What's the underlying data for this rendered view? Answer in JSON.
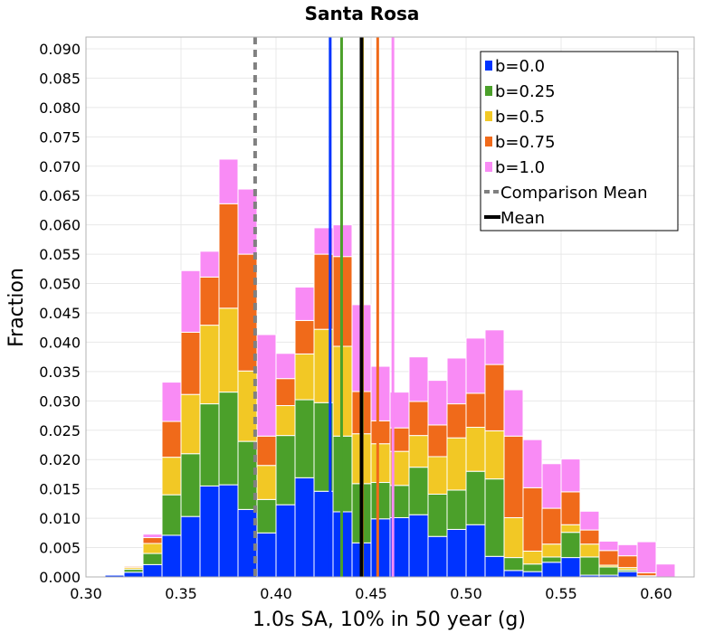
{
  "chart_data": {
    "type": "bar",
    "stacked": true,
    "title": "Santa Rosa",
    "xlabel": "1.0s SA, 10% in 50 year (g)",
    "ylabel": "Fraction",
    "xlim": [
      0.3,
      0.62
    ],
    "ylim": [
      0.0,
      0.092
    ],
    "grid": true,
    "legend_position": "top-right",
    "xticks": [
      "0.30",
      "0.35",
      "0.40",
      "0.45",
      "0.50",
      "0.55",
      "0.60"
    ],
    "yticks": [
      "0.000",
      "0.005",
      "0.010",
      "0.015",
      "0.020",
      "0.025",
      "0.030",
      "0.035",
      "0.040",
      "0.045",
      "0.050",
      "0.055",
      "0.060",
      "0.065",
      "0.070",
      "0.075",
      "0.080",
      "0.085",
      "0.090"
    ],
    "bin_width": 0.01,
    "bin_centers": [
      0.305,
      0.315,
      0.325,
      0.335,
      0.345,
      0.355,
      0.365,
      0.375,
      0.385,
      0.395,
      0.405,
      0.415,
      0.425,
      0.435,
      0.445,
      0.455,
      0.465,
      0.475,
      0.485,
      0.495,
      0.505,
      0.515,
      0.525,
      0.535,
      0.545,
      0.555,
      0.565,
      0.575,
      0.585,
      0.595,
      0.605
    ],
    "series": [
      {
        "name": "b=0.0",
        "color": "#0033ff",
        "values": [
          0.0001,
          0.0003,
          0.0008,
          0.0021,
          0.0071,
          0.0103,
          0.0155,
          0.0157,
          0.0115,
          0.0075,
          0.0123,
          0.0169,
          0.0146,
          0.0111,
          0.0058,
          0.0099,
          0.0101,
          0.0106,
          0.0069,
          0.0081,
          0.0089,
          0.0035,
          0.0011,
          0.0009,
          0.0025,
          0.0033,
          0.0003,
          0.0003,
          0.0009,
          0.0001,
          0.0
        ]
      },
      {
        "name": "b=0.25",
        "color": "#4ba02a",
        "values": [
          0.0,
          0.0,
          0.0005,
          0.0019,
          0.0069,
          0.0107,
          0.014,
          0.0158,
          0.0116,
          0.0057,
          0.0118,
          0.0133,
          0.0151,
          0.0129,
          0.0101,
          0.0062,
          0.0055,
          0.0081,
          0.0072,
          0.0067,
          0.0091,
          0.0132,
          0.0022,
          0.0013,
          0.0009,
          0.0043,
          0.0031,
          0.0014,
          0.0003,
          0.0001,
          0.0
        ]
      },
      {
        "name": "b=0.5",
        "color": "#f2c825",
        "values": [
          0.0,
          0.0,
          0.0003,
          0.0017,
          0.0064,
          0.0101,
          0.0134,
          0.0143,
          0.012,
          0.0058,
          0.0051,
          0.0078,
          0.0125,
          0.0153,
          0.0085,
          0.0066,
          0.0058,
          0.0054,
          0.0064,
          0.0089,
          0.0075,
          0.0082,
          0.0068,
          0.0022,
          0.0022,
          0.0013,
          0.0022,
          0.0003,
          0.0004,
          0.0,
          0.0
        ]
      },
      {
        "name": "b=0.75",
        "color": "#f06a1a",
        "values": [
          0.0,
          0.0,
          0.0002,
          0.001,
          0.0061,
          0.0106,
          0.0082,
          0.0178,
          0.0199,
          0.005,
          0.0046,
          0.0057,
          0.0128,
          0.0153,
          0.0072,
          0.0039,
          0.004,
          0.0058,
          0.0054,
          0.0058,
          0.0058,
          0.0113,
          0.0139,
          0.0108,
          0.0061,
          0.0056,
          0.0024,
          0.0025,
          0.002,
          0.0005,
          0.0
        ]
      },
      {
        "name": "b=1.0",
        "color": "#f98bf5",
        "values": [
          0.0,
          0.0,
          0.0,
          0.0006,
          0.0067,
          0.0105,
          0.0044,
          0.0076,
          0.0111,
          0.0173,
          0.0043,
          0.0057,
          0.0045,
          0.0054,
          0.0148,
          0.0093,
          0.0061,
          0.0076,
          0.0076,
          0.0078,
          0.0094,
          0.0059,
          0.0079,
          0.0082,
          0.0076,
          0.0056,
          0.0032,
          0.0016,
          0.0019,
          0.0053,
          0.0022
        ]
      }
    ],
    "vlines": [
      {
        "series": "b=0.0",
        "x": 0.4285,
        "color": "#0033ff",
        "style": "solid"
      },
      {
        "series": "b=0.25",
        "x": 0.4345,
        "color": "#4ba02a",
        "style": "solid"
      },
      {
        "series": "b=0.5",
        "x": 0.4455,
        "color": "#f2c825",
        "style": "solid"
      },
      {
        "series": "b=0.75",
        "x": 0.4535,
        "color": "#f06a1a",
        "style": "solid"
      },
      {
        "series": "b=1.0",
        "x": 0.4615,
        "color": "#f98bf5",
        "style": "solid"
      },
      {
        "series": "Comparison Mean",
        "x": 0.389,
        "color": "#808080",
        "style": "dashed"
      },
      {
        "series": "Mean",
        "x": 0.445,
        "color": "#000000",
        "style": "solid"
      }
    ],
    "legend": [
      {
        "label": "b=0.0",
        "color": "#0033ff",
        "kind": "box"
      },
      {
        "label": "b=0.25",
        "color": "#4ba02a",
        "kind": "box"
      },
      {
        "label": "b=0.5",
        "color": "#f2c825",
        "kind": "box"
      },
      {
        "label": "b=0.75",
        "color": "#f06a1a",
        "kind": "box"
      },
      {
        "label": "b=1.0",
        "color": "#f98bf5",
        "kind": "box"
      },
      {
        "label": "Comparison Mean",
        "color": "#808080",
        "kind": "dashed"
      },
      {
        "label": "Mean",
        "color": "#000000",
        "kind": "line"
      }
    ]
  }
}
